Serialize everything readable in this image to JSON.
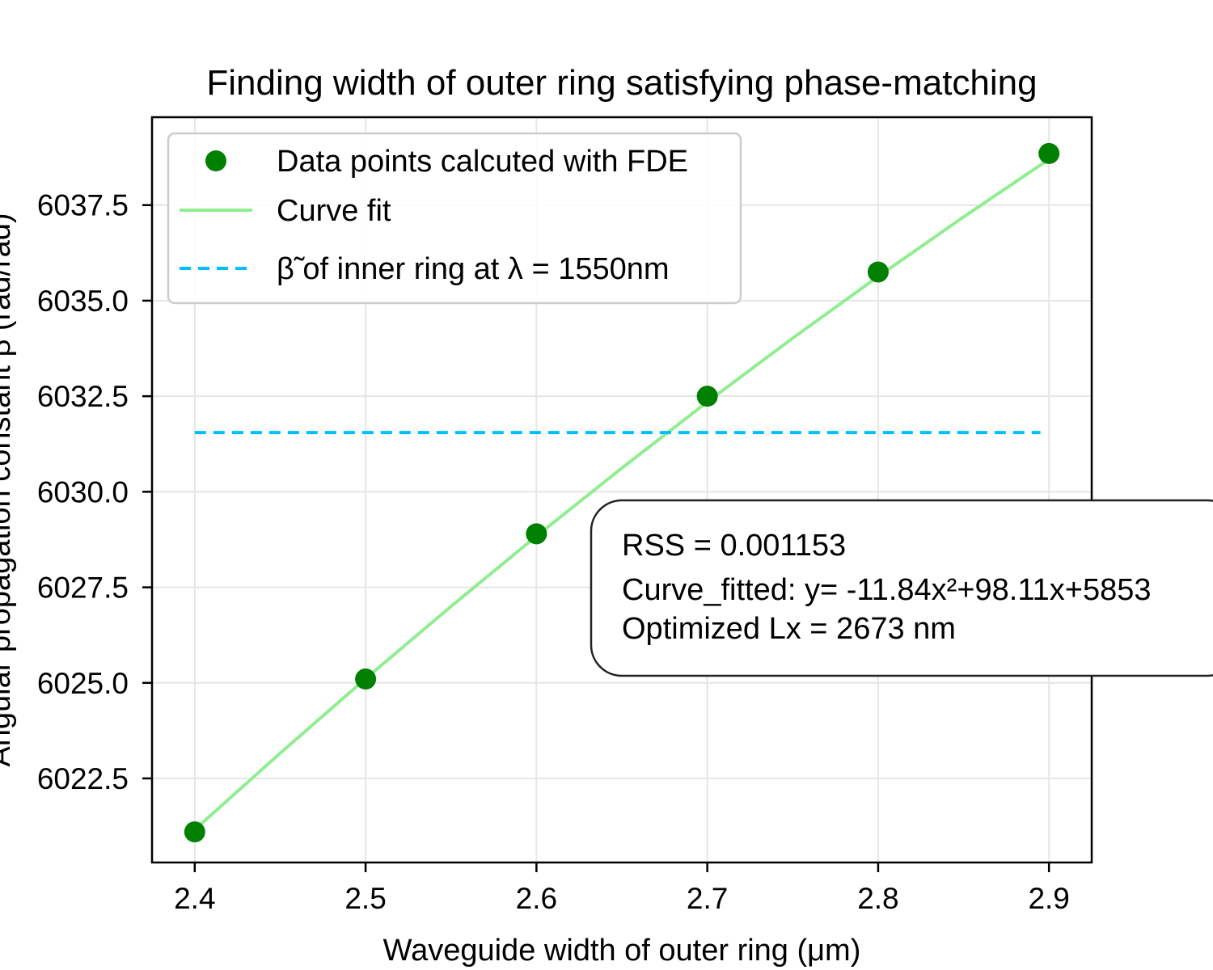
{
  "chart_data": {
    "type": "scatter",
    "title": "Finding width of outer ring satisfying phase-matching",
    "xlabel": "Waveguide width of outer ring (μm)",
    "ylabel": "Angular propagation constant β (rad/rad)",
    "xlim": [
      2.375,
      2.925
    ],
    "ylim": [
      6020.3,
      6039.8
    ],
    "xticks": [
      2.4,
      2.5,
      2.6,
      2.7,
      2.8,
      2.9
    ],
    "xtick_labels": [
      "2.4",
      "2.5",
      "2.6",
      "2.7",
      "2.8",
      "2.9"
    ],
    "yticks": [
      6022.5,
      6025.0,
      6027.5,
      6030.0,
      6032.5,
      6035.0,
      6037.5
    ],
    "ytick_labels": [
      "6022.5",
      "6025.0",
      "6027.5",
      "6030.0",
      "6032.5",
      "6035.0",
      "6037.5"
    ],
    "grid": true,
    "legend_position": "upper-left",
    "series": [
      {
        "name": "Data points calcuted with FDE",
        "kind": "scatter",
        "color": "#008000",
        "x": [
          2.4,
          2.5,
          2.6,
          2.7,
          2.8,
          2.9
        ],
        "y": [
          6021.1,
          6025.1,
          6028.9,
          6032.5,
          6035.75,
          6038.85
        ]
      },
      {
        "name": "Curve fit",
        "kind": "line",
        "color": "#90ee90",
        "x": [
          2.4,
          2.45,
          2.5,
          2.55,
          2.6,
          2.65,
          2.7,
          2.75,
          2.8,
          2.85,
          2.9
        ],
        "y": [
          6021.16,
          6023.16,
          6025.11,
          6027.0,
          6028.84,
          6030.62,
          6032.35,
          6034.02,
          6035.63,
          6037.19,
          6038.7
        ]
      },
      {
        "name": "β̃ of inner ring at λ = 1550nm",
        "kind": "hline",
        "color": "#00bfff",
        "x": [
          2.4,
          2.895
        ],
        "y": [
          6031.55,
          6031.55
        ]
      }
    ],
    "annotation": {
      "lines": [
        "RSS = 0.001153",
        "Curve_fitted: y= -11.84x²+98.11x+5853",
        "Optimized Lx = 2673 nm"
      ]
    }
  }
}
